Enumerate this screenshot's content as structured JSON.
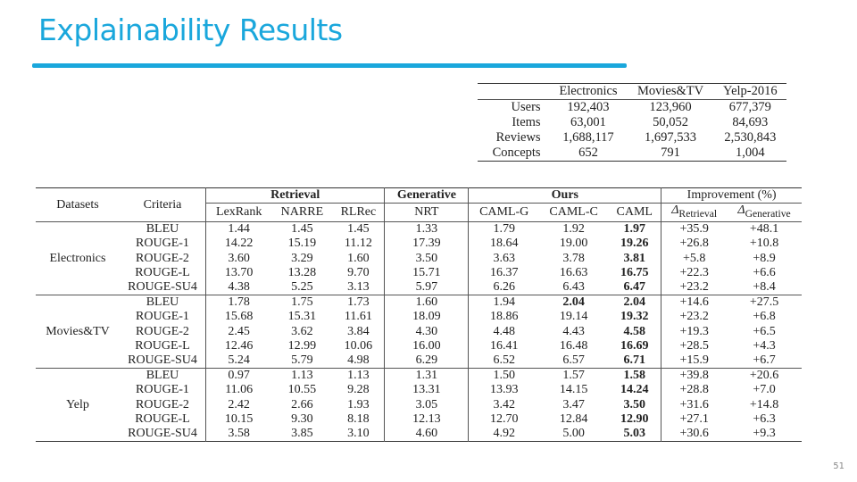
{
  "slide": {
    "title": "Explainability Results",
    "page_number": "51"
  },
  "stats_table": {
    "headers": [
      "",
      "Electronics",
      "Movies&TV",
      "Yelp-2016"
    ],
    "rows": [
      {
        "label": "Users",
        "values": [
          "192,403",
          "123,960",
          "677,379"
        ]
      },
      {
        "label": "Items",
        "values": [
          "63,001",
          "50,052",
          "84,693"
        ]
      },
      {
        "label": "Reviews",
        "values": [
          "1,688,117",
          "1,697,533",
          "2,530,843"
        ]
      },
      {
        "label": "Concepts",
        "values": [
          "652",
          "791",
          "1,004"
        ]
      }
    ]
  },
  "results_table": {
    "header_datasets": "Datasets",
    "header_criteria": "Criteria",
    "group_retrieval": "Retrieval",
    "group_generative": "Generative",
    "group_ours": "Ours",
    "group_improvement": "Improvement (%)",
    "columns": [
      "LexRank",
      "NARRE",
      "RLRec",
      "NRT",
      "CAML-G",
      "CAML-C",
      "CAML"
    ],
    "delta_retrieval": {
      "symbol": "Δ",
      "sub": "Retrieval"
    },
    "delta_generative": {
      "symbol": "Δ",
      "sub": "Generative"
    },
    "groups": [
      {
        "dataset": "Electronics",
        "rows": [
          {
            "criteria": "BLEU",
            "values": [
              "1.44",
              "1.45",
              "1.45",
              "1.33",
              "1.79",
              "1.92",
              "1.97"
            ],
            "bold": [
              6
            ],
            "improvement": [
              "+35.9",
              "+48.1"
            ]
          },
          {
            "criteria": "ROUGE-1",
            "values": [
              "14.22",
              "15.19",
              "11.12",
              "17.39",
              "18.64",
              "19.00",
              "19.26"
            ],
            "bold": [
              6
            ],
            "improvement": [
              "+26.8",
              "+10.8"
            ]
          },
          {
            "criteria": "ROUGE-2",
            "values": [
              "3.60",
              "3.29",
              "1.60",
              "3.50",
              "3.63",
              "3.78",
              "3.81"
            ],
            "bold": [
              6
            ],
            "improvement": [
              "+5.8",
              "+8.9"
            ]
          },
          {
            "criteria": "ROUGE-L",
            "values": [
              "13.70",
              "13.28",
              "9.70",
              "15.71",
              "16.37",
              "16.63",
              "16.75"
            ],
            "bold": [
              6
            ],
            "improvement": [
              "+22.3",
              "+6.6"
            ]
          },
          {
            "criteria": "ROUGE-SU4",
            "values": [
              "4.38",
              "5.25",
              "3.13",
              "5.97",
              "6.26",
              "6.43",
              "6.47"
            ],
            "bold": [
              6
            ],
            "improvement": [
              "+23.2",
              "+8.4"
            ]
          }
        ]
      },
      {
        "dataset": "Movies&TV",
        "rows": [
          {
            "criteria": "BLEU",
            "values": [
              "1.78",
              "1.75",
              "1.73",
              "1.60",
              "1.94",
              "2.04",
              "2.04"
            ],
            "bold": [
              5,
              6
            ],
            "improvement": [
              "+14.6",
              "+27.5"
            ]
          },
          {
            "criteria": "ROUGE-1",
            "values": [
              "15.68",
              "15.31",
              "11.61",
              "18.09",
              "18.86",
              "19.14",
              "19.32"
            ],
            "bold": [
              6
            ],
            "improvement": [
              "+23.2",
              "+6.8"
            ]
          },
          {
            "criteria": "ROUGE-2",
            "values": [
              "2.45",
              "3.62",
              "3.84",
              "4.30",
              "4.48",
              "4.43",
              "4.58"
            ],
            "bold": [
              6
            ],
            "improvement": [
              "+19.3",
              "+6.5"
            ]
          },
          {
            "criteria": "ROUGE-L",
            "values": [
              "12.46",
              "12.99",
              "10.06",
              "16.00",
              "16.41",
              "16.48",
              "16.69"
            ],
            "bold": [
              6
            ],
            "improvement": [
              "+28.5",
              "+4.3"
            ]
          },
          {
            "criteria": "ROUGE-SU4",
            "values": [
              "5.24",
              "5.79",
              "4.98",
              "6.29",
              "6.52",
              "6.57",
              "6.71"
            ],
            "bold": [
              6
            ],
            "improvement": [
              "+15.9",
              "+6.7"
            ]
          }
        ]
      },
      {
        "dataset": "Yelp",
        "rows": [
          {
            "criteria": "BLEU",
            "values": [
              "0.97",
              "1.13",
              "1.13",
              "1.31",
              "1.50",
              "1.57",
              "1.58"
            ],
            "bold": [
              6
            ],
            "improvement": [
              "+39.8",
              "+20.6"
            ]
          },
          {
            "criteria": "ROUGE-1",
            "values": [
              "11.06",
              "10.55",
              "9.28",
              "13.31",
              "13.93",
              "14.15",
              "14.24"
            ],
            "bold": [
              6
            ],
            "improvement": [
              "+28.8",
              "+7.0"
            ]
          },
          {
            "criteria": "ROUGE-2",
            "values": [
              "2.42",
              "2.66",
              "1.93",
              "3.05",
              "3.42",
              "3.47",
              "3.50"
            ],
            "bold": [
              6
            ],
            "improvement": [
              "+31.6",
              "+14.8"
            ]
          },
          {
            "criteria": "ROUGE-L",
            "values": [
              "10.15",
              "9.30",
              "8.18",
              "12.13",
              "12.70",
              "12.84",
              "12.90"
            ],
            "bold": [
              6
            ],
            "improvement": [
              "+27.1",
              "+6.3"
            ]
          },
          {
            "criteria": "ROUGE-SU4",
            "values": [
              "3.58",
              "3.85",
              "3.10",
              "4.60",
              "4.92",
              "5.00",
              "5.03"
            ],
            "bold": [
              6
            ],
            "improvement": [
              "+30.6",
              "+9.3"
            ]
          }
        ]
      }
    ]
  },
  "colors": {
    "accent": "#1aa7dc",
    "text": "#222222"
  }
}
